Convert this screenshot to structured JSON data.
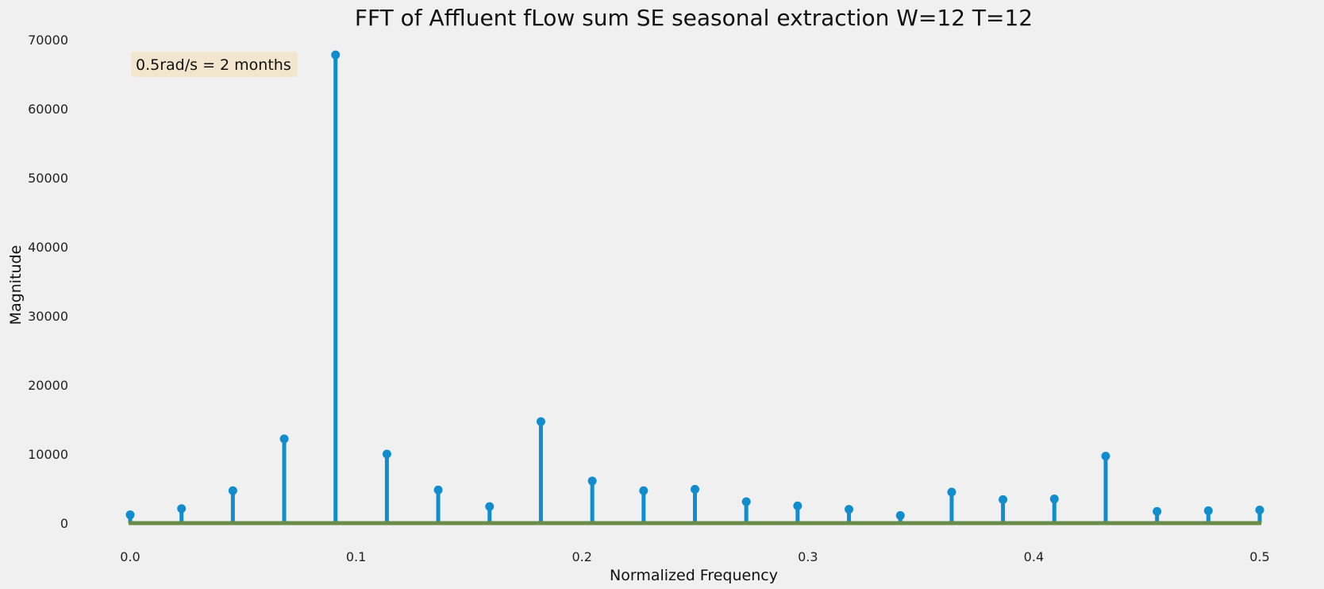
{
  "chart_data": {
    "type": "stem",
    "title": "FFT of Affluent fLow sum SE seasonal extraction W=12 T=12",
    "xlabel": "Normalized Frequency",
    "ylabel": "Magnitude",
    "xlim": [
      0.0,
      0.5
    ],
    "ylim": [
      0,
      70000
    ],
    "x_ticks": [
      "0.0",
      "0.1",
      "0.2",
      "0.3",
      "0.4",
      "0.5"
    ],
    "y_ticks": [
      "0",
      "10000",
      "20000",
      "30000",
      "40000",
      "50000",
      "60000",
      "70000"
    ],
    "grid": false,
    "annotation": "0.5rad/s = 2 months",
    "colors": {
      "stem": "#118ccc",
      "baseline": "#6a8c4a",
      "background": "#f0f0f0",
      "annotation_box": "#f3e6cf"
    },
    "x": [
      0.0,
      0.02273,
      0.04545,
      0.06818,
      0.09091,
      0.11364,
      0.13636,
      0.15909,
      0.18182,
      0.20455,
      0.22727,
      0.25,
      0.27273,
      0.29545,
      0.31818,
      0.34091,
      0.36364,
      0.38636,
      0.40909,
      0.43182,
      0.45455,
      0.47727,
      0.5
    ],
    "values": [
      1200,
      2100,
      4700,
      12200,
      67800,
      10000,
      4800,
      2400,
      14700,
      6100,
      4700,
      4900,
      3100,
      2500,
      2000,
      1100,
      4500,
      3400,
      3500,
      9700,
      1700,
      1800,
      1900
    ]
  }
}
